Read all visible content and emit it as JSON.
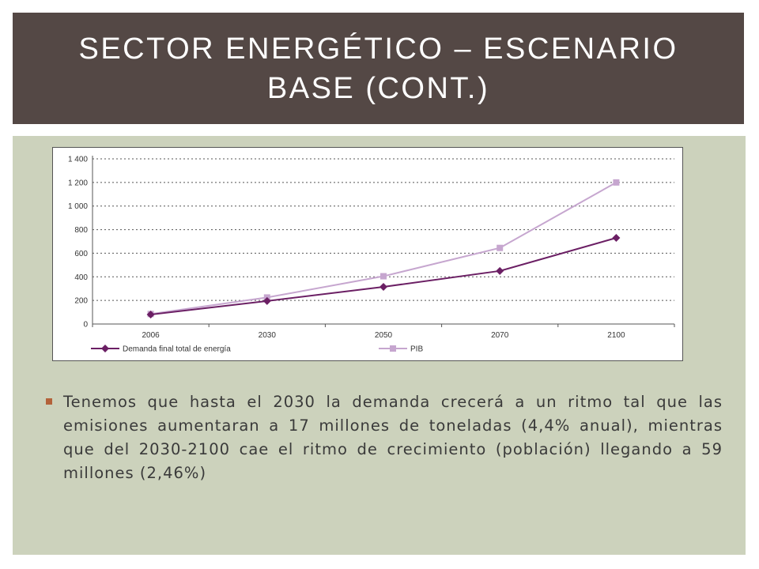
{
  "slide": {
    "title": "Sector energético – Escenario base (cont.)",
    "bullet_text": "Tenemos que hasta el 2030 la demanda crecerá a un ritmo tal que las emisiones aumentaran a 17 millones de toneladas (4,4% anual), mientras que del 2030-2100 cae el ritmo de crecimiento (población) llegando a 59 millones (2,46%)"
  },
  "colors": {
    "title_bg": "#544845",
    "content_bg": "#ccd2bc",
    "bullet": "#b3623a",
    "series_demand": "#6b1f64",
    "series_pib": "#c6a6cf"
  },
  "chart_data": {
    "type": "line",
    "title": "",
    "xlabel": "",
    "ylabel": "",
    "categories": [
      "2006",
      "2030",
      "2050",
      "2070",
      "2100"
    ],
    "ylim": [
      0,
      1400
    ],
    "yticks": [
      0,
      200,
      400,
      600,
      800,
      1000,
      1200,
      1400
    ],
    "ytick_labels": [
      "0",
      "200",
      "400",
      "600",
      "800",
      "1 000",
      "1 200",
      "1 400"
    ],
    "grid": "horizontal dotted",
    "legend_position": "bottom",
    "series": [
      {
        "name": "Demanda final total de energía",
        "color": "#6b1f64",
        "marker": "diamond",
        "values": [
          80,
          195,
          315,
          450,
          730
        ]
      },
      {
        "name": "PIB",
        "color": "#c6a6cf",
        "marker": "square",
        "values": [
          85,
          225,
          405,
          645,
          1200
        ]
      }
    ]
  }
}
